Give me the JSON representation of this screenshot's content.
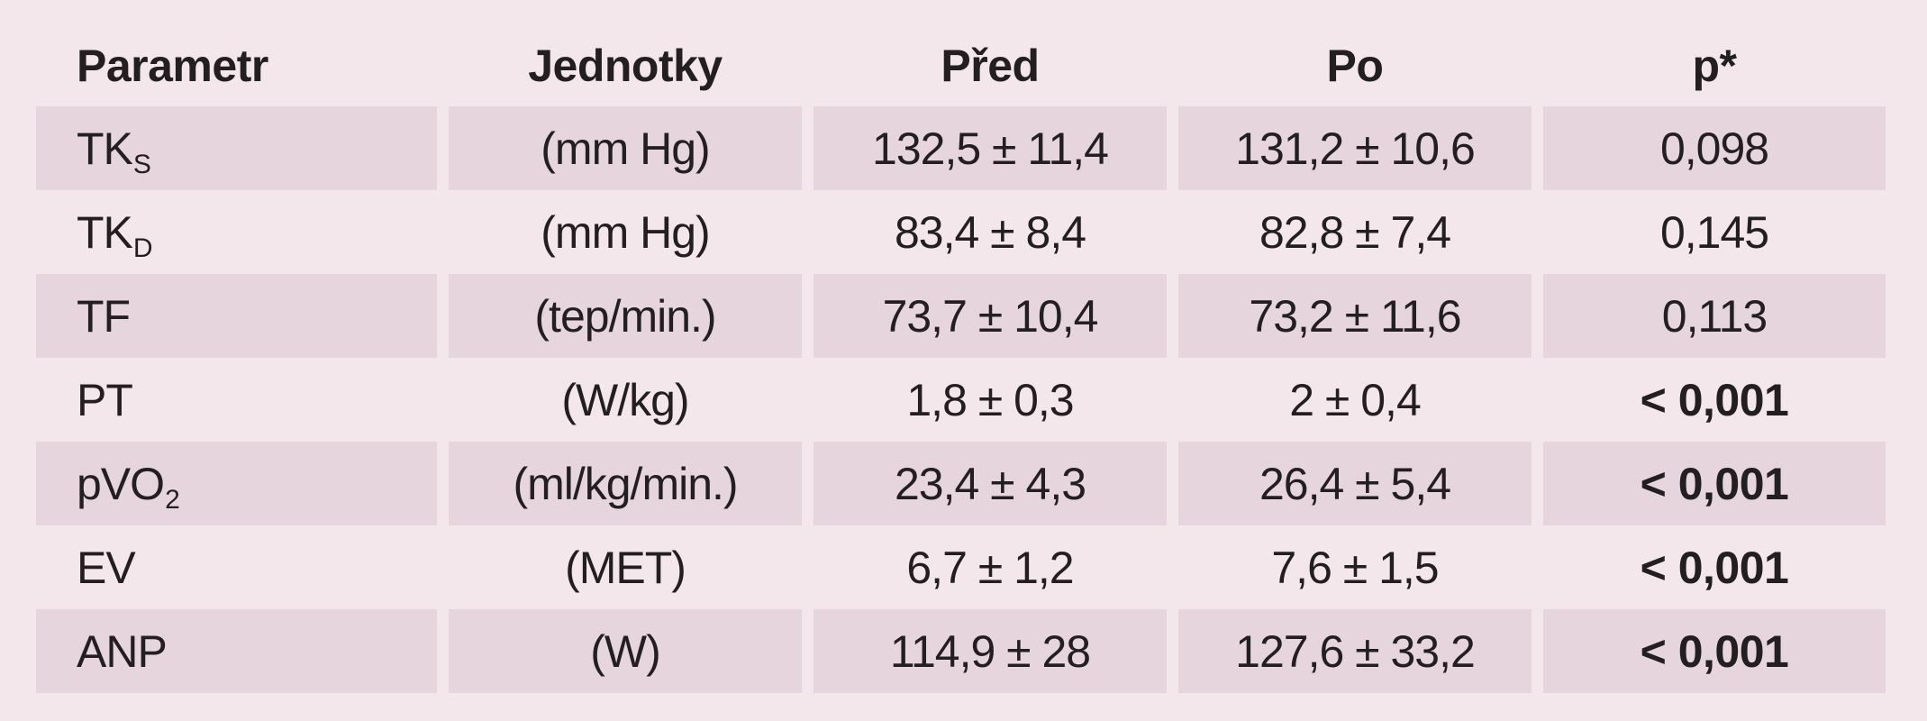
{
  "table": {
    "headers": [
      "Parametr",
      "Jednotky",
      "Před",
      "Po",
      "p*"
    ],
    "rows": [
      {
        "param": "TK",
        "sub": "S",
        "unit": "(mm Hg)",
        "before": "132,5 ± 11,4",
        "after": "131,2 ± 10,6",
        "p": "0,098",
        "p_bold": false,
        "shaded": true
      },
      {
        "param": "TK",
        "sub": "D",
        "unit": "(mm Hg)",
        "before": "83,4 ± 8,4",
        "after": "82,8 ± 7,4",
        "p": "0,145",
        "p_bold": false,
        "shaded": false
      },
      {
        "param": "TF",
        "sub": "",
        "unit": "(tep/min.)",
        "before": "73,7 ± 10,4",
        "after": "73,2 ± 11,6",
        "p": "0,113",
        "p_bold": false,
        "shaded": true
      },
      {
        "param": "PT",
        "sub": "",
        "unit": "(W/kg)",
        "before": "1,8 ± 0,3",
        "after": "2 ± 0,4",
        "p": "< 0,001",
        "p_bold": true,
        "shaded": false
      },
      {
        "param": "pVO",
        "sub": "2",
        "unit": "(ml/kg/min.)",
        "before": "23,4 ± 4,3",
        "after": "26,4 ± 5,4",
        "p": "< 0,001",
        "p_bold": true,
        "shaded": true
      },
      {
        "param": "EV",
        "sub": "",
        "unit": "(MET)",
        "before": "6,7 ± 1,2",
        "after": "7,6 ± 1,5",
        "p": "< 0,001",
        "p_bold": true,
        "shaded": false
      },
      {
        "param": "ANP",
        "sub": "",
        "unit": "(W)",
        "before": "114,9 ± 28",
        "after": "127,6 ± 33,2",
        "p": "< 0,001",
        "p_bold": true,
        "shaded": true
      }
    ]
  },
  "colors": {
    "background": "#f3e7ec",
    "row_shade": "#e7d5de",
    "text": "#231f20"
  }
}
